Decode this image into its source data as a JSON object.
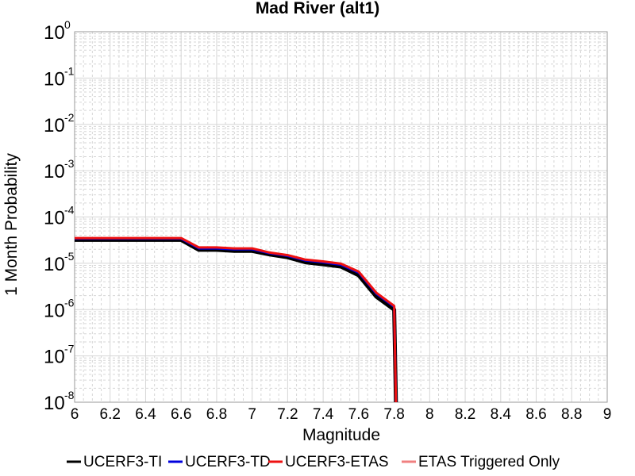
{
  "chart_data": {
    "type": "line",
    "title": "Mad River (alt1)",
    "xlabel": "Magnitude",
    "ylabel": "1 Month Probability",
    "xlim": [
      6,
      9
    ],
    "ylim": [
      1e-08,
      1
    ],
    "yscale": "log",
    "grid": true,
    "legend_position": "bottom",
    "x_ticks": [
      "6",
      "6.2",
      "6.4",
      "6.6",
      "6.8",
      "7",
      "7.2",
      "7.4",
      "7.6",
      "7.8",
      "8",
      "8.2",
      "8.4",
      "8.6",
      "8.8",
      "9"
    ],
    "y_ticks": [
      {
        "base": "10",
        "exp": "-8"
      },
      {
        "base": "10",
        "exp": "-7"
      },
      {
        "base": "10",
        "exp": "-6"
      },
      {
        "base": "10",
        "exp": "-5"
      },
      {
        "base": "10",
        "exp": "-4"
      },
      {
        "base": "10",
        "exp": "-3"
      },
      {
        "base": "10",
        "exp": "-2"
      },
      {
        "base": "10",
        "exp": "-1"
      },
      {
        "base": "10",
        "exp": "0"
      }
    ],
    "series": [
      {
        "name": "UCERF3-TI",
        "color": "#000000",
        "x": [
          6.0,
          6.1,
          6.2,
          6.3,
          6.4,
          6.5,
          6.6,
          6.7,
          6.8,
          6.9,
          7.0,
          7.1,
          7.2,
          7.3,
          7.4,
          7.5,
          7.6,
          7.7,
          7.8,
          7.81
        ],
        "y": [
          3.2e-05,
          3.2e-05,
          3.2e-05,
          3.2e-05,
          3.2e-05,
          3.2e-05,
          3.2e-05,
          1.95e-05,
          1.95e-05,
          1.85e-05,
          1.85e-05,
          1.55e-05,
          1.35e-05,
          1.05e-05,
          9.5e-06,
          8.5e-06,
          5.5e-06,
          1.9e-06,
          1e-06,
          1e-08
        ]
      },
      {
        "name": "UCERF3-TD",
        "color": "#0000dd",
        "x": [
          6.0,
          6.1,
          6.2,
          6.3,
          6.4,
          6.5,
          6.6,
          6.7,
          6.8,
          6.9,
          7.0,
          7.1,
          7.2,
          7.3,
          7.4,
          7.5,
          7.6,
          7.7,
          7.8,
          7.81
        ],
        "y": [
          3.4e-05,
          3.4e-05,
          3.4e-05,
          3.4e-05,
          3.4e-05,
          3.4e-05,
          3.4e-05,
          2.1e-05,
          2.1e-05,
          2e-05,
          2e-05,
          1.65e-05,
          1.45e-05,
          1.15e-05,
          1.05e-05,
          9.3e-06,
          6.3e-06,
          2.2e-06,
          1.15e-06,
          1e-08
        ]
      },
      {
        "name": "UCERF3-ETAS",
        "color": "#ee1111",
        "x": [
          6.0,
          6.1,
          6.2,
          6.3,
          6.4,
          6.5,
          6.6,
          6.7,
          6.8,
          6.9,
          7.0,
          7.1,
          7.2,
          7.3,
          7.4,
          7.5,
          7.6,
          7.7,
          7.8,
          7.81
        ],
        "y": [
          3.5e-05,
          3.5e-05,
          3.5e-05,
          3.5e-05,
          3.5e-05,
          3.5e-05,
          3.5e-05,
          2.2e-05,
          2.2e-05,
          2.1e-05,
          2.1e-05,
          1.7e-05,
          1.5e-05,
          1.2e-05,
          1.1e-05,
          9.8e-06,
          6.6e-06,
          2.3e-06,
          1.2e-06,
          1e-08
        ]
      },
      {
        "name": "ETAS Triggered Only",
        "color": "#f08080",
        "x": [],
        "y": []
      }
    ]
  }
}
